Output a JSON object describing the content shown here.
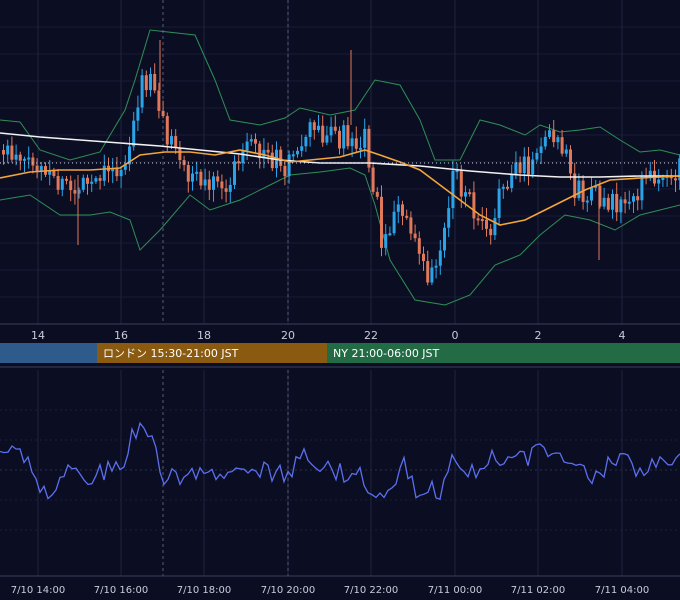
{
  "chart_data": [
    {
      "type": "candlestick",
      "panel": "price",
      "overlays": [
        "bollinger-bands",
        "moving-average-white",
        "moving-average-orange"
      ],
      "colors": {
        "up": "#2aa3e8",
        "down": "#e0785a",
        "bollinger": "#2f8f56",
        "ma_slow": "#f2f2f2",
        "ma_fast": "#f3a43a",
        "dotted_level": "#cfd2dc"
      },
      "hour_ticks": [
        {
          "label": "14"
        },
        {
          "label": "16"
        },
        {
          "label": "18"
        },
        {
          "label": "20"
        },
        {
          "label": "22"
        },
        {
          "label": "0"
        },
        {
          "label": "2"
        },
        {
          "label": "4"
        }
      ],
      "grid": true
    },
    {
      "type": "line",
      "panel": "oscillator",
      "colors": {
        "line": "#5b6ff0"
      },
      "time_ticks": [
        {
          "label": "7/10 14:00"
        },
        {
          "label": "7/10 16:00"
        },
        {
          "label": "7/10 18:00"
        },
        {
          "label": "7/10 20:00"
        },
        {
          "label": "7/10 22:00"
        },
        {
          "label": "7/11 00:00"
        },
        {
          "label": "7/11 02:00"
        },
        {
          "label": "7/11 04:00"
        }
      ],
      "grid": true
    }
  ],
  "sessions": [
    {
      "label": "",
      "color": "#2e5a8c"
    },
    {
      "label": "ロンドン 15:30-21:00 JST",
      "color": "#8a5a10"
    },
    {
      "label": "NY 21:00-06:00 JST",
      "color": "#236b45"
    }
  ]
}
